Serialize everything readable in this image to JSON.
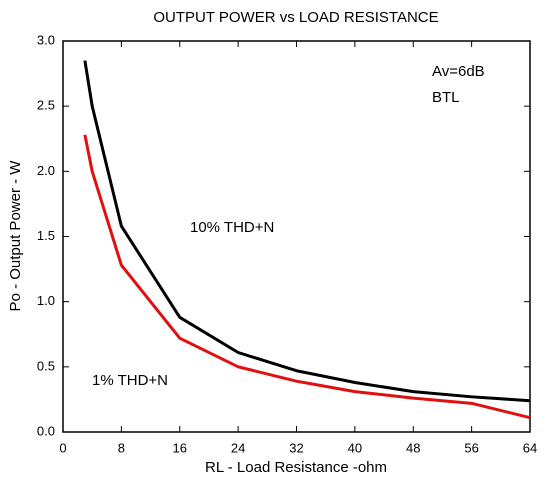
{
  "chart_data": {
    "type": "line",
    "title": "OUTPUT POWER vs LOAD RESISTANCE",
    "xlabel": "RL - Load Resistance -ohm",
    "ylabel": "Po - Output Power - W",
    "annotations": [
      "Av=6dB",
      "BTL"
    ],
    "x": [
      3,
      4,
      8,
      16,
      24,
      32,
      40,
      48,
      56,
      64
    ],
    "series": [
      {
        "name": "10% THD+N",
        "color": "#000000",
        "values": [
          2.85,
          2.5,
          1.58,
          0.88,
          0.61,
          0.47,
          0.38,
          0.31,
          0.27,
          0.24
        ]
      },
      {
        "name": "1% THD+N",
        "color": "#e01010",
        "values": [
          2.28,
          2.0,
          1.28,
          0.72,
          0.5,
          0.39,
          0.31,
          0.26,
          0.22,
          0.11
        ]
      }
    ],
    "xlim": [
      0,
      64
    ],
    "xticks": [
      0,
      8,
      16,
      24,
      32,
      40,
      48,
      56,
      64
    ],
    "ylim": [
      0,
      3
    ],
    "yticks": [
      {
        "value": 0,
        "label": "0.0"
      },
      0.5,
      {
        "value": 1,
        "label": "1.0"
      },
      1.5,
      {
        "value": 2,
        "label": "2.0"
      },
      2.5,
      {
        "value": 3,
        "label": "3.0"
      }
    ]
  }
}
